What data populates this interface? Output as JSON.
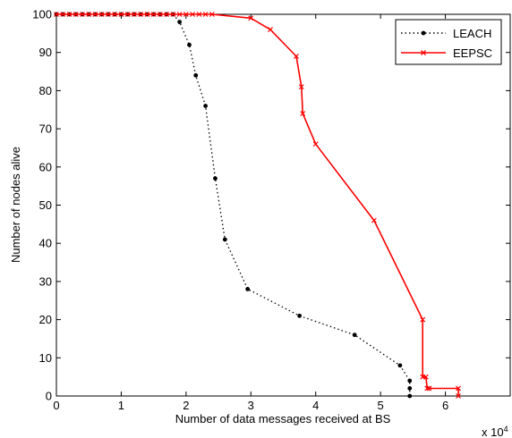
{
  "chart_data": {
    "type": "line",
    "title": "",
    "xlabel": "Number of data messages received at BS",
    "ylabel": "Number of nodes alive",
    "x_exponent_label": "x 10",
    "x_exponent_power": "4",
    "xlim": [
      0,
      7
    ],
    "ylim": [
      0,
      100
    ],
    "xticks": [
      0,
      1,
      2,
      3,
      4,
      5,
      6
    ],
    "yticks": [
      0,
      10,
      20,
      30,
      40,
      50,
      60,
      70,
      80,
      90,
      100
    ],
    "grid": false,
    "legend_position": "top-right",
    "series": [
      {
        "name": "LEACH",
        "color": "#000000",
        "line_style": "dotted",
        "marker": "dot",
        "x": [
          0,
          0.1,
          0.2,
          0.3,
          0.4,
          0.5,
          0.6,
          0.7,
          0.8,
          0.9,
          1.0,
          1.1,
          1.2,
          1.3,
          1.4,
          1.5,
          1.6,
          1.7,
          1.8,
          1.9,
          2.05,
          2.15,
          2.3,
          2.45,
          2.6,
          2.95,
          3.75,
          4.6,
          5.3,
          5.45,
          5.45,
          5.45
        ],
        "y": [
          100,
          100,
          100,
          100,
          100,
          100,
          100,
          100,
          100,
          100,
          100,
          100,
          100,
          100,
          100,
          100,
          100,
          100,
          100,
          98,
          92,
          84,
          76,
          57,
          41,
          28,
          21,
          16,
          8,
          4,
          2,
          0
        ]
      },
      {
        "name": "EEPSC",
        "color": "#ff0000",
        "line_style": "solid",
        "marker": "x",
        "x": [
          0,
          0.1,
          0.2,
          0.3,
          0.4,
          0.5,
          0.6,
          0.7,
          0.8,
          0.9,
          1.0,
          1.1,
          1.2,
          1.3,
          1.4,
          1.5,
          1.6,
          1.7,
          1.8,
          1.9,
          2.0,
          2.1,
          2.2,
          2.3,
          2.4,
          3.0,
          3.3,
          3.7,
          3.78,
          3.8,
          4.0,
          4.9,
          5.65,
          5.65,
          5.7,
          5.72,
          5.75,
          6.2,
          6.2
        ],
        "y": [
          100,
          100,
          100,
          100,
          100,
          100,
          100,
          100,
          100,
          100,
          100,
          100,
          100,
          100,
          100,
          100,
          100,
          100,
          100,
          100,
          100,
          100,
          100,
          100,
          100,
          99,
          96,
          89,
          81,
          74,
          66,
          46,
          20,
          5,
          5,
          2,
          2,
          2,
          0
        ]
      }
    ]
  }
}
